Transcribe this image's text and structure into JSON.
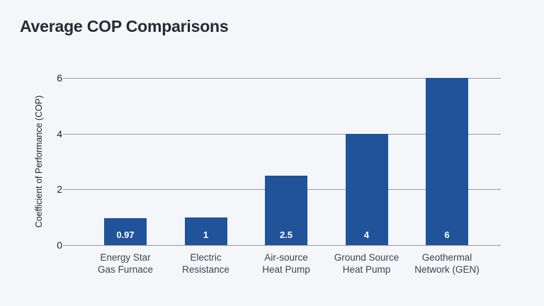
{
  "colors": {
    "background": "#f5f6fa",
    "title_text": "#262b35",
    "axis_text": "#202631",
    "category_text": "#3f434b",
    "gridline": "#949aa3",
    "bar_color": "#20539a",
    "value_label": "#ffffff"
  },
  "chart_data": {
    "type": "bar",
    "title": "Average COP Comparisons",
    "categories": [
      "Energy Star Gas Furnace",
      "Electric Resistance",
      "Air-source Heat Pump",
      "Ground Source Heat Pump",
      "Geothermal Network (GEN)"
    ],
    "category_label_lines": [
      [
        "Energy Star",
        "Gas Furnace"
      ],
      [
        "Electric",
        "Resistance"
      ],
      [
        "Air-source",
        "Heat Pump"
      ],
      [
        "Ground Source",
        "Heat Pump"
      ],
      [
        "Geothermal",
        "Network (GEN)"
      ]
    ],
    "values": [
      0.97,
      1,
      2.5,
      4,
      6
    ],
    "value_labels": [
      "0.97",
      "1",
      "2.5",
      "4",
      "6"
    ],
    "xlabel": "",
    "ylabel": "Coefficient of Performance (COP)",
    "ylim": [
      0,
      6
    ],
    "yticks": [
      0,
      2,
      4,
      6
    ],
    "grid": "horizontal",
    "legend": "none"
  }
}
